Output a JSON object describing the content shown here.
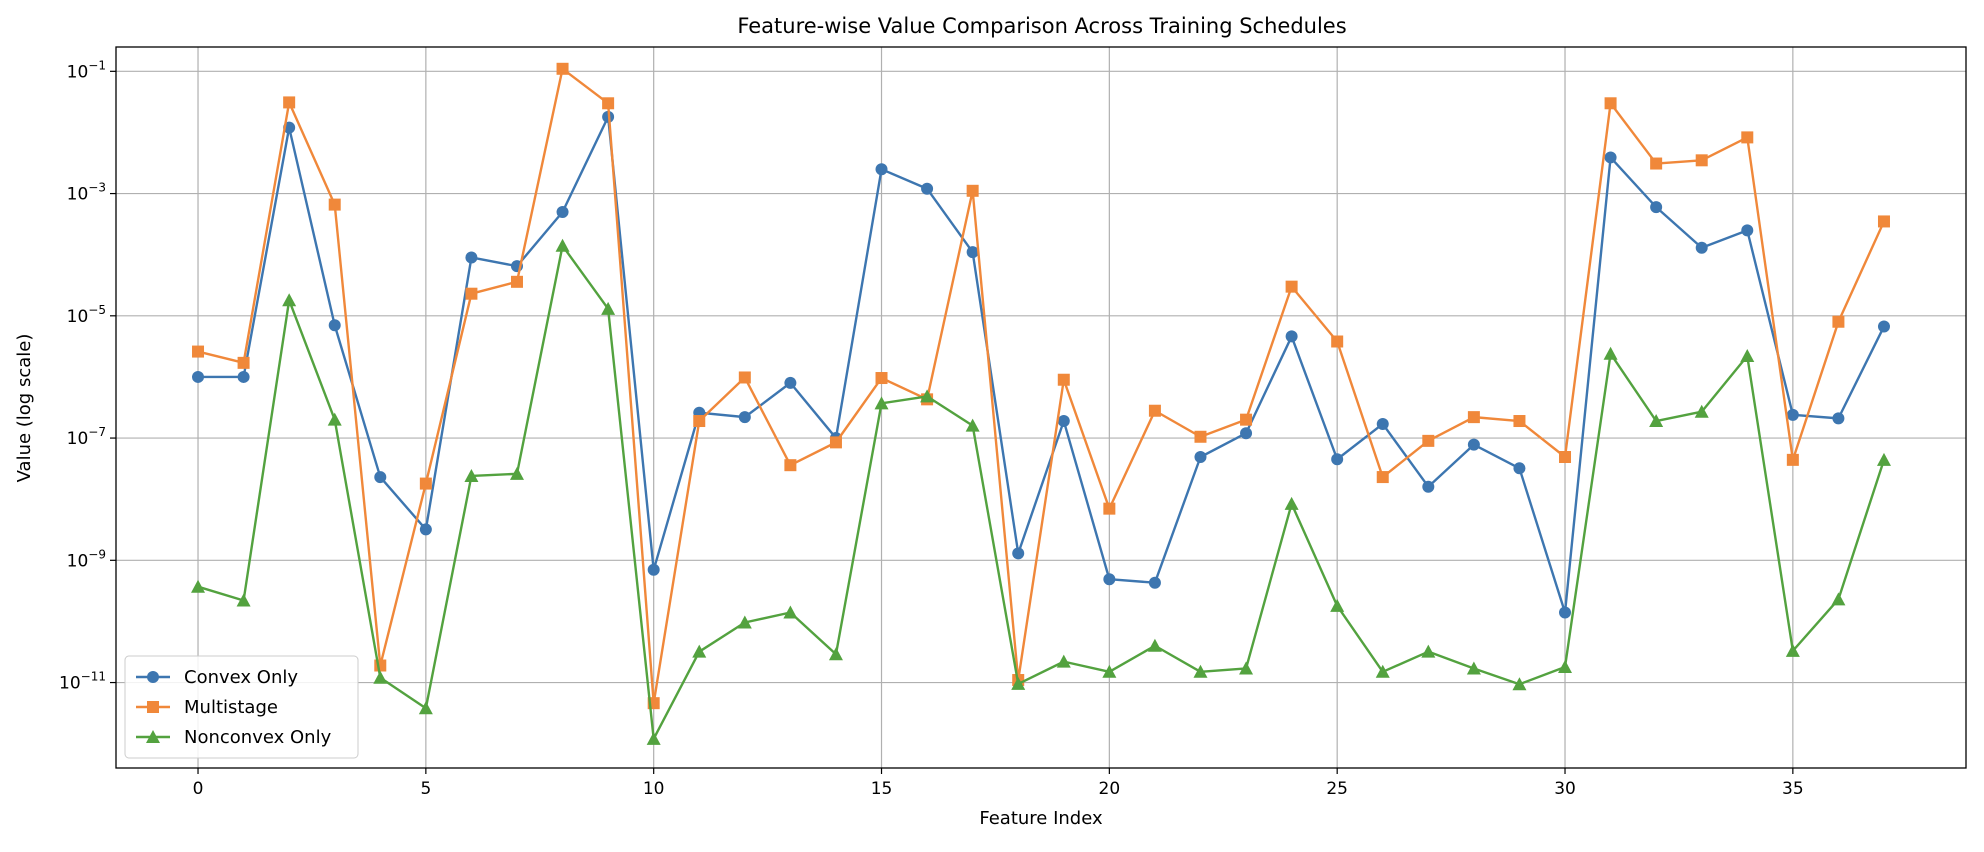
{
  "chart_data": {
    "type": "line",
    "title": "Feature-wise Value Comparison Across Training Schedules",
    "xlabel": "Feature Index",
    "ylabel": "Value (log scale)",
    "yscale": "log",
    "grid": true,
    "legend_position": "lower-left",
    "xlim": [
      -1.8,
      38.8
    ],
    "ylim": [
      4e-13,
      0.25
    ],
    "x_ticks": [
      0,
      5,
      10,
      15,
      20,
      25,
      30,
      35
    ],
    "y_ticks": [
      {
        "value": 1e-11,
        "base": "10",
        "exp": "−11"
      },
      {
        "value": 1e-09,
        "base": "10",
        "exp": "−9"
      },
      {
        "value": 1e-07,
        "base": "10",
        "exp": "−7"
      },
      {
        "value": 1e-05,
        "base": "10",
        "exp": "−5"
      },
      {
        "value": 0.001,
        "base": "10",
        "exp": "−3"
      },
      {
        "value": 0.1,
        "base": "10",
        "exp": "−1"
      }
    ],
    "x": [
      0,
      1,
      2,
      3,
      4,
      5,
      6,
      7,
      8,
      9,
      10,
      11,
      12,
      13,
      14,
      15,
      16,
      17,
      18,
      19,
      20,
      21,
      22,
      23,
      24,
      25,
      26,
      27,
      28,
      29,
      30,
      31,
      32,
      33,
      34,
      35,
      36,
      37
    ],
    "series": [
      {
        "name": "Convex Only",
        "color": "#3d76b0",
        "marker": "circle",
        "values": [
          1e-06,
          1e-06,
          0.012,
          7e-06,
          2.3e-08,
          3.2e-09,
          9e-05,
          6.5e-05,
          0.0005,
          0.018,
          7e-10,
          2.6e-07,
          2.2e-07,
          8e-07,
          1e-07,
          0.0025,
          0.0012,
          0.00011,
          1.3e-09,
          1.9e-07,
          4.9e-10,
          4.3e-10,
          4.9e-08,
          1.2e-07,
          4.6e-06,
          4.5e-08,
          1.7e-07,
          1.6e-08,
          7.8e-08,
          3.2e-08,
          1.4e-10,
          0.0039,
          0.0006,
          0.00013,
          0.00025,
          2.4e-07,
          2.1e-07,
          6.7e-06
        ]
      },
      {
        "name": "Multistage",
        "color": "#f0883a",
        "marker": "square",
        "values": [
          2.6e-06,
          1.7e-06,
          0.031,
          0.00066,
          1.9e-11,
          1.8e-08,
          2.3e-05,
          3.6e-05,
          0.11,
          0.03,
          4.6e-12,
          1.9e-07,
          9.8e-07,
          3.6e-08,
          8.5e-08,
          9.6e-07,
          4.3e-07,
          0.00111,
          1.1e-11,
          9e-07,
          7e-09,
          2.8e-07,
          1.05e-07,
          2e-07,
          3e-05,
          3.8e-06,
          2.3e-08,
          9e-08,
          2.2e-07,
          1.9e-07,
          4.9e-08,
          0.03,
          0.0031,
          0.0035,
          0.0083,
          4.4e-08,
          8e-06,
          0.00035
        ]
      },
      {
        "name": "Nonconvex Only",
        "color": "#53a23f",
        "marker": "triangle",
        "values": [
          3.7e-10,
          2.2e-10,
          1.8e-05,
          2e-07,
          1.2e-11,
          3.8e-12,
          2.4e-08,
          2.6e-08,
          0.00014,
          1.3e-05,
          1.2e-12,
          3.2e-11,
          9.6e-11,
          1.4e-10,
          2.9e-11,
          3.7e-07,
          4.8e-07,
          1.6e-07,
          9.5e-12,
          2.2e-11,
          1.5e-11,
          4e-11,
          1.5e-11,
          1.7e-11,
          8.4e-09,
          1.8e-10,
          1.5e-11,
          3.2e-11,
          1.7e-11,
          9.4e-12,
          1.8e-11,
          2.4e-06,
          1.9e-07,
          2.7e-07,
          2.2e-06,
          3.3e-11,
          2.3e-10,
          4.4e-08
        ]
      }
    ]
  }
}
